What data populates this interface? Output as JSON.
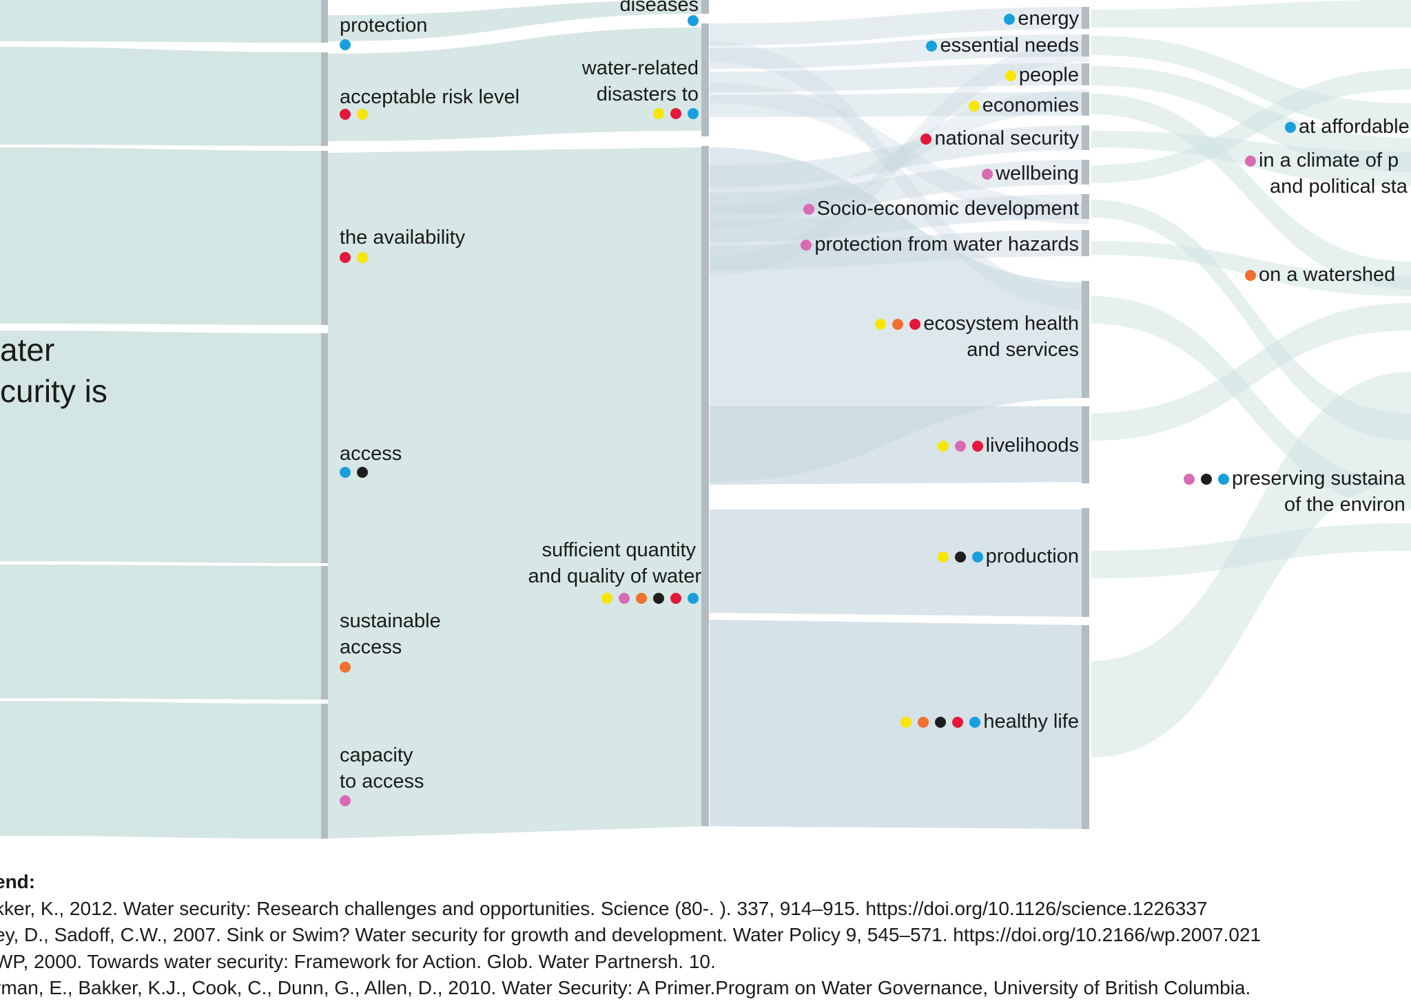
{
  "colors": {
    "yellow": "#f6e600",
    "pink": "#d96bb4",
    "orange": "#f07030",
    "black": "#1e1e1e",
    "red": "#e3183a",
    "blue": "#1a9fdc",
    "bar": "#b4bcc1",
    "flow_light": "#cfe3e1",
    "flow_blue": "#c7d8e0"
  },
  "title": {
    "line1": "ater",
    "line2": "curity is"
  },
  "column1": [
    {
      "label": "protection",
      "dots": [
        "blue"
      ]
    },
    {
      "label": "acceptable risk level",
      "dots": [
        "red",
        "yellow"
      ]
    },
    {
      "label": "the availability",
      "dots": [
        "red",
        "yellow"
      ]
    },
    {
      "label": "access",
      "dots": [
        "blue",
        "black"
      ]
    },
    {
      "label": "sustainable",
      "label2": "access",
      "dots": [
        "orange"
      ]
    },
    {
      "label": "capacity",
      "label2": "to access",
      "dots": [
        "pink"
      ]
    }
  ],
  "column2": [
    {
      "label": "diseases",
      "dots": [
        "blue"
      ]
    },
    {
      "label": "water-related",
      "label2": "disasters to",
      "dots": [
        "yellow",
        "red",
        "blue"
      ]
    },
    {
      "label": "sufficient quantity",
      "label2": "and quality of water",
      "dots": [
        "yellow",
        "pink",
        "orange",
        "black",
        "red",
        "blue"
      ]
    }
  ],
  "column3": [
    {
      "label": "energy",
      "dots": [
        "blue"
      ]
    },
    {
      "label": "essential needs",
      "dots": [
        "blue"
      ]
    },
    {
      "label": "people",
      "dots": [
        "yellow"
      ]
    },
    {
      "label": "economies",
      "dots": [
        "yellow"
      ]
    },
    {
      "label": "national security",
      "dots": [
        "red"
      ]
    },
    {
      "label": "wellbeing",
      "dots": [
        "pink"
      ]
    },
    {
      "label": "Socio-economic development",
      "dots": [
        "pink"
      ]
    },
    {
      "label": "protection from water hazards",
      "dots": [
        "pink"
      ]
    },
    {
      "label": "ecosystem health",
      "label2": "and services",
      "dots": [
        "yellow",
        "orange",
        "red"
      ]
    },
    {
      "label": "livelihoods",
      "dots": [
        "yellow",
        "pink",
        "red"
      ]
    },
    {
      "label": "production",
      "dots": [
        "yellow",
        "black",
        "blue"
      ]
    },
    {
      "label": "healthy life",
      "dots": [
        "yellow",
        "orange",
        "black",
        "red",
        "blue"
      ]
    }
  ],
  "column4": [
    {
      "label": "at affordable",
      "dots": [
        "blue"
      ]
    },
    {
      "label": "in a climate of p",
      "label2": "and political sta",
      "dots": [
        "pink"
      ]
    },
    {
      "label": "on a watershed",
      "dots": [
        "orange"
      ]
    },
    {
      "label": "preserving sustaina",
      "label2": "of the environ",
      "dots": [
        "pink",
        "black",
        "blue"
      ]
    }
  ],
  "legend": {
    "heading": "end:",
    "refs": [
      "kker, K., 2012. Water security: Research challenges and opportunities. Science (80-. ). 337, 914–915. https://doi.org/10.1126/science.1226337",
      "ey, D., Sadoff, C.W., 2007. Sink or Swim? Water security for growth and development. Water Policy 9, 545–571. https://doi.org/10.2166/wp.2007.021",
      "WP, 2000. Towards water security: Framework for Action. Glob. Water Partnersh. 10.",
      "rman, E., Bakker, K.J., Cook, C., Dunn, G., Allen, D., 2010. Water Security: A Primer.Program on Water Governance, University of British Columbia."
    ]
  }
}
